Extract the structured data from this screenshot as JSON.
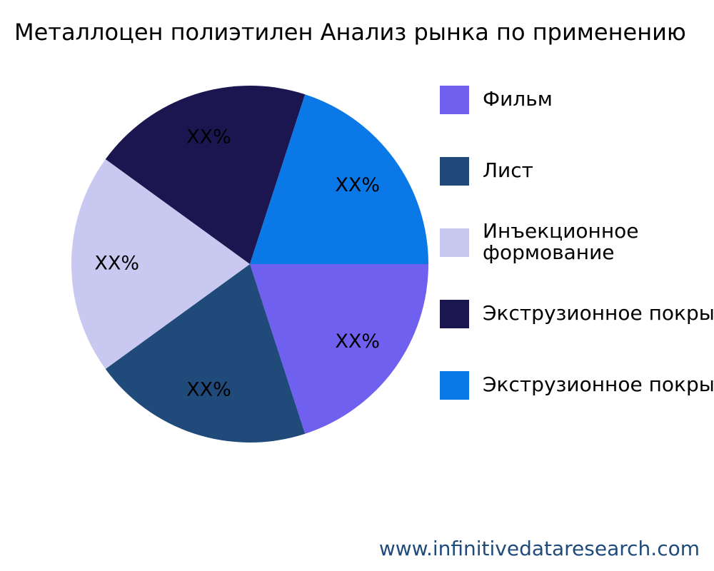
{
  "chart_data": {
    "type": "pie",
    "title": "Металлоцен полиэтилен Анализ рынка по применению",
    "categories": [
      "Фильм",
      "Лист",
      "Инъекционное формование",
      "Экструзионное покрытие",
      "Экструзионное покрытие"
    ],
    "values": [
      20,
      20,
      20,
      20,
      20
    ],
    "value_labels": [
      "XX%",
      "XX%",
      "XX%",
      "XX%",
      "XX%"
    ],
    "colors": [
      "#7060f0",
      "#1f4a7a",
      "#c8c8f0",
      "#1c1650",
      "#0a78e6"
    ],
    "source": "www.infinitivedataresearch.com"
  }
}
